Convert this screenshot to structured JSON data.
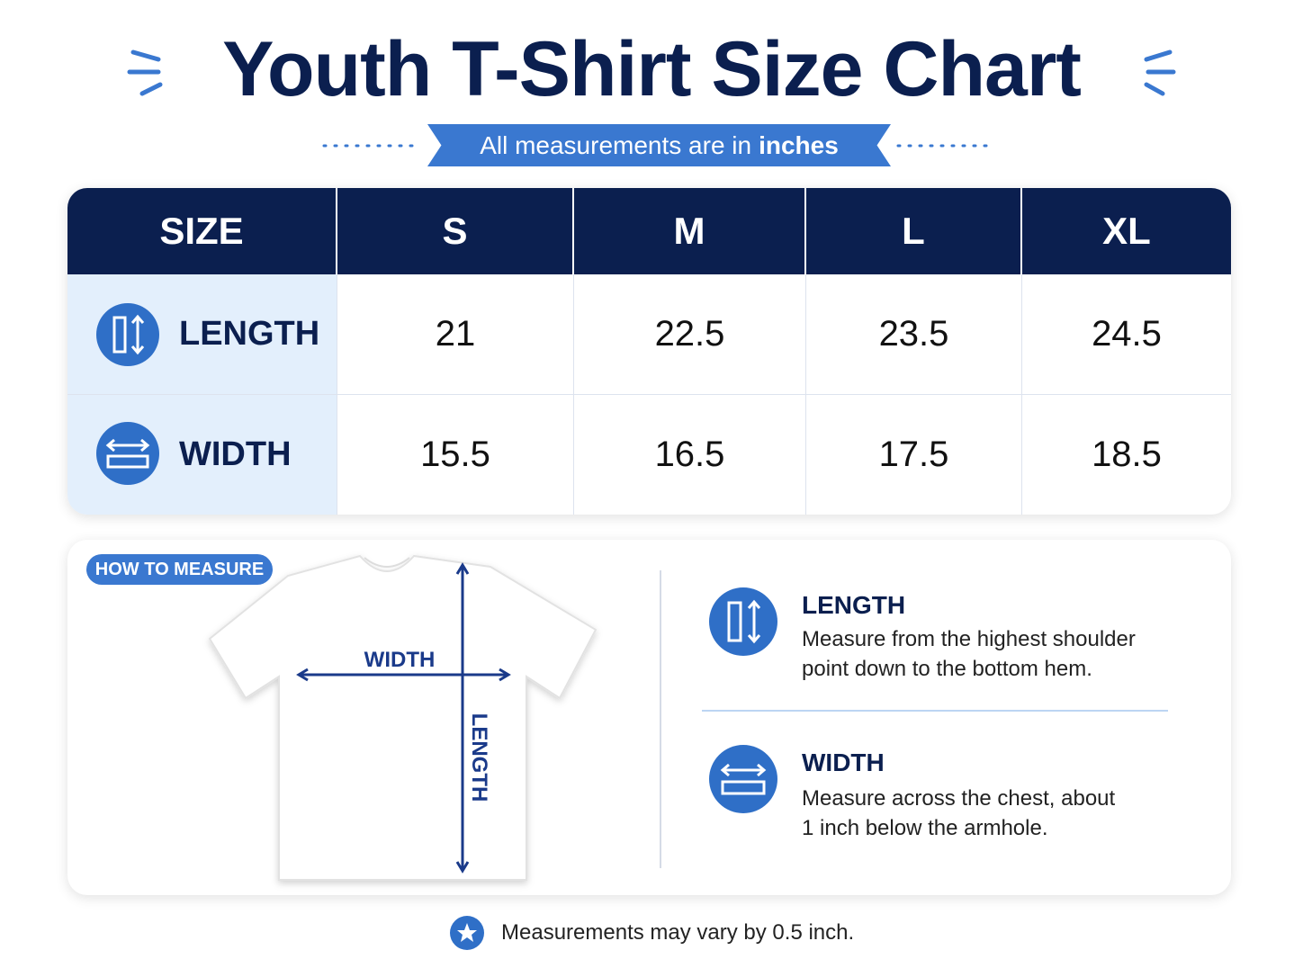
{
  "header": {
    "title": "Youth T-Shirt Size Chart",
    "subtitle": "All measurements are in",
    "subtitle_emphasis": "inches"
  },
  "table": {
    "columns": [
      "SIZE",
      "S",
      "M",
      "L",
      "XL"
    ],
    "rows": [
      {
        "label": "LENGTH",
        "values": [
          21,
          22.5,
          23.5,
          24.5
        ]
      },
      {
        "label": "WIDTH",
        "values": [
          15.5,
          16.5,
          17.5,
          18.5
        ]
      }
    ]
  },
  "how_to_measure": {
    "badge": "HOW TO MEASURE",
    "width_label": "WIDTH",
    "length_label": "LENGTH",
    "items": [
      {
        "title": "LENGTH",
        "text": "Measure from the highest shoulder point down to the bottom hem."
      },
      {
        "title": "WIDTH",
        "text": "Measure across the chest, about 1 inch below the armhole."
      }
    ]
  },
  "footer": {
    "note": "Measurements may vary by 0.5 inch."
  }
}
